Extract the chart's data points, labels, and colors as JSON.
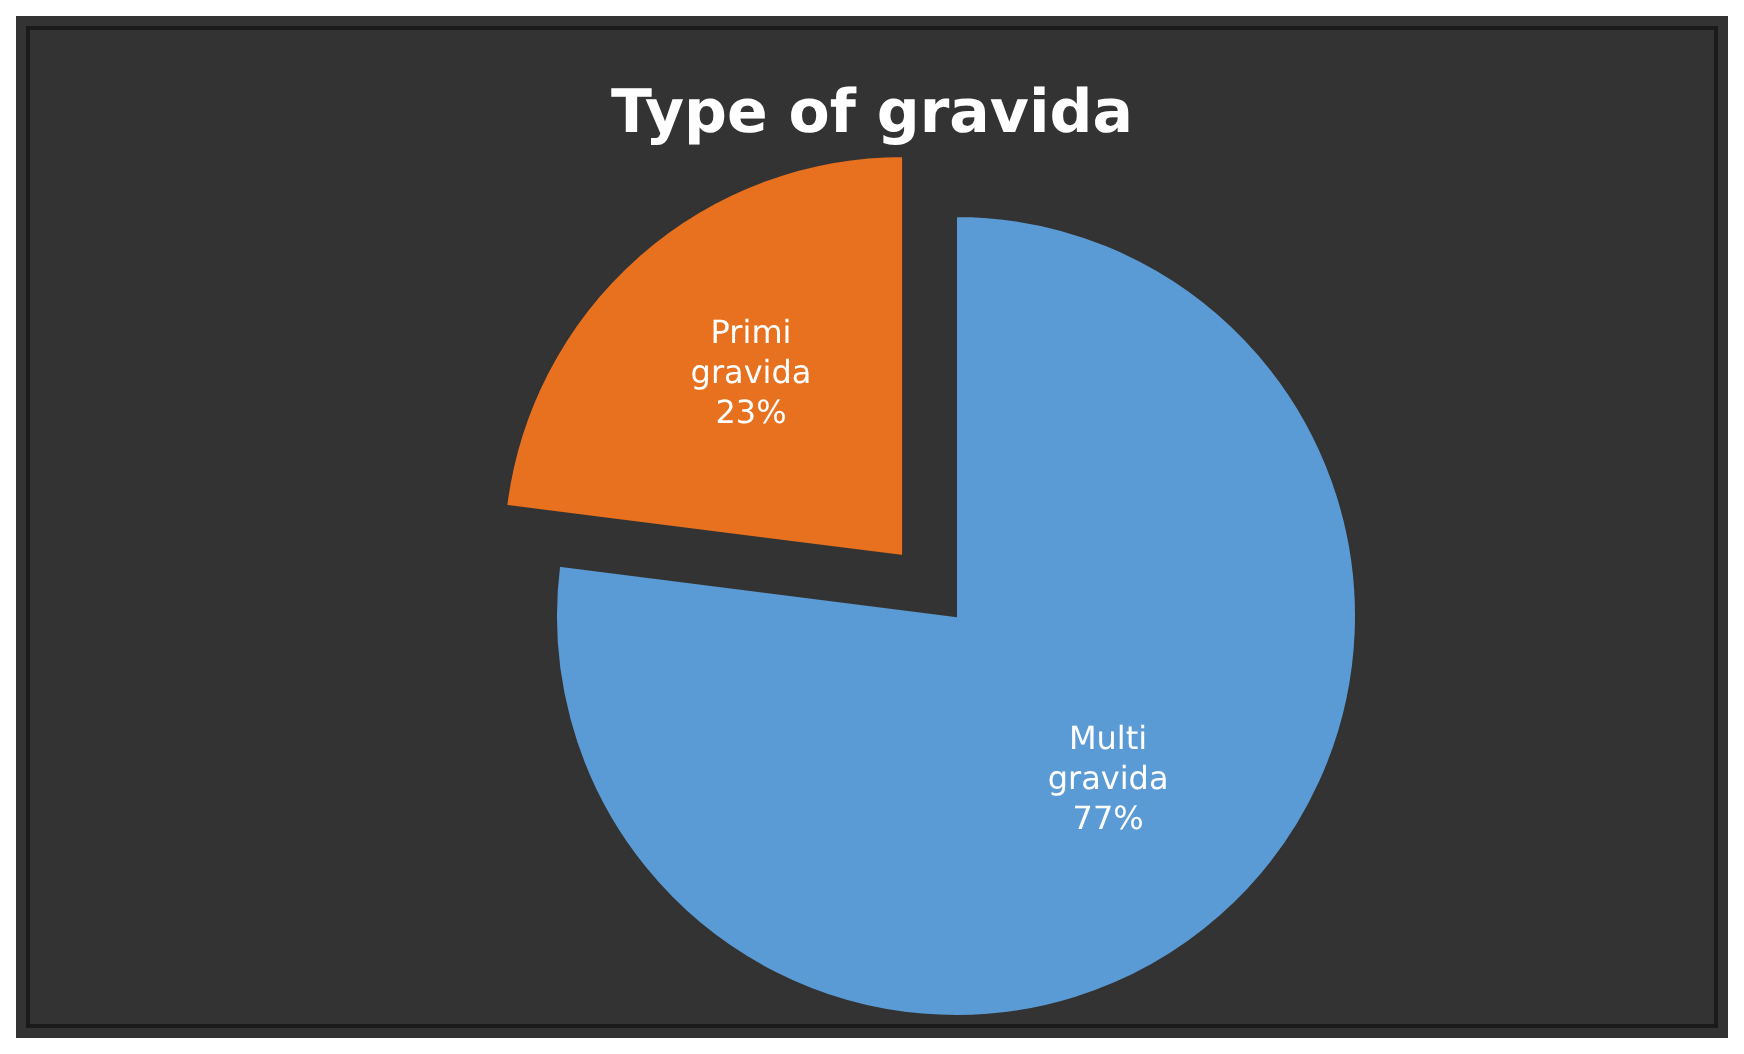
{
  "chart_data": {
    "type": "pie",
    "title": "Type of gravida",
    "categories": [
      "Primi gravida",
      "Multi gravida"
    ],
    "values": [
      23,
      77
    ],
    "colors": [
      "#e8711f",
      "#5b9bd5"
    ],
    "value_labels": [
      "23%",
      "77%"
    ],
    "legend": false
  }
}
